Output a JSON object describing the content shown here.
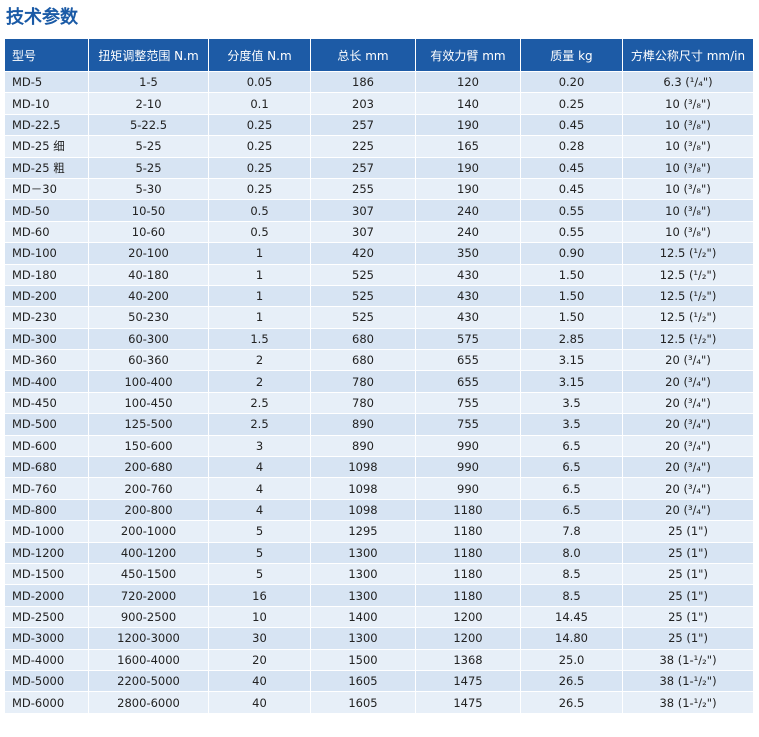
{
  "title": "技术参数",
  "table": {
    "header": [
      "型号",
      "扭矩调整范围 N.m",
      "分度值 N.m",
      "总长 mm",
      "有效力臂 mm",
      "质量 kg",
      "方榫公称尺寸 mm/in"
    ],
    "rows": [
      [
        "MD-5",
        "1-5",
        "0.05",
        "186",
        "120",
        "0.20",
        "6.3 (¹/₄\")"
      ],
      [
        "MD-10",
        "2-10",
        "0.1",
        "203",
        "140",
        "0.25",
        "10 (³/₈\")"
      ],
      [
        "MD-22.5",
        "5-22.5",
        "0.25",
        "257",
        "190",
        "0.45",
        "10 (³/₈\")"
      ],
      [
        "MD-25 细",
        "5-25",
        "0.25",
        "225",
        "165",
        "0.28",
        "10 (³/₈\")"
      ],
      [
        "MD-25 粗",
        "5-25",
        "0.25",
        "257",
        "190",
        "0.45",
        "10 (³/₈\")"
      ],
      [
        "MD－30",
        "5-30",
        "0.25",
        "255",
        "190",
        "0.45",
        "10 (³/₈\")"
      ],
      [
        "MD-50",
        "10-50",
        "0.5",
        "307",
        "240",
        "0.55",
        "10 (³/₈\")"
      ],
      [
        "MD-60",
        "10-60",
        "0.5",
        "307",
        "240",
        "0.55",
        "10 (³/₈\")"
      ],
      [
        "MD-100",
        "20-100",
        "1",
        "420",
        "350",
        "0.90",
        "12.5 (¹/₂\")"
      ],
      [
        "MD-180",
        "40-180",
        "1",
        "525",
        "430",
        "1.50",
        "12.5 (¹/₂\")"
      ],
      [
        "MD-200",
        "40-200",
        "1",
        "525",
        "430",
        "1.50",
        "12.5 (¹/₂\")"
      ],
      [
        "MD-230",
        "50-230",
        "1",
        "525",
        "430",
        "1.50",
        "12.5 (¹/₂\")"
      ],
      [
        "MD-300",
        "60-300",
        "1.5",
        "680",
        "575",
        "2.85",
        "12.5 (¹/₂\")"
      ],
      [
        "MD-360",
        "60-360",
        "2",
        "680",
        "655",
        "3.15",
        "20 (³/₄\")"
      ],
      [
        "MD-400",
        "100-400",
        "2",
        "780",
        "655",
        "3.15",
        "20 (³/₄\")"
      ],
      [
        "MD-450",
        "100-450",
        "2.5",
        "780",
        "755",
        "3.5",
        "20 (³/₄\")"
      ],
      [
        "MD-500",
        "125-500",
        "2.5",
        "890",
        "755",
        "3.5",
        "20 (³/₄\")"
      ],
      [
        "MD-600",
        "150-600",
        "3",
        "890",
        "990",
        "6.5",
        "20 (³/₄\")"
      ],
      [
        "MD-680",
        "200-680",
        "4",
        "1098",
        "990",
        "6.5",
        "20 (³/₄\")"
      ],
      [
        "MD-760",
        "200-760",
        "4",
        "1098",
        "990",
        "6.5",
        "20 (³/₄\")"
      ],
      [
        "MD-800",
        "200-800",
        "4",
        "1098",
        "1180",
        "6.5",
        "20 (³/₄\")"
      ],
      [
        "MD-1000",
        "200-1000",
        "5",
        "1295",
        "1180",
        "7.8",
        "25 (1\")"
      ],
      [
        "MD-1200",
        "400-1200",
        "5",
        "1300",
        "1180",
        "8.0",
        "25 (1\")"
      ],
      [
        "MD-1500",
        "450-1500",
        "5",
        "1300",
        "1180",
        "8.5",
        "25 (1\")"
      ],
      [
        "MD-2000",
        "720-2000",
        "16",
        "1300",
        "1180",
        "8.5",
        "25 (1\")"
      ],
      [
        "MD-2500",
        "900-2500",
        "10",
        "1400",
        "1200",
        "14.45",
        "25 (1\")"
      ],
      [
        "MD-3000",
        "1200-3000",
        "30",
        "1300",
        "1200",
        "14.80",
        "25 (1\")"
      ],
      [
        "MD-4000",
        "1600-4000",
        "20",
        "1500",
        "1368",
        "25.0",
        "38 (1-¹/₂\")"
      ],
      [
        "MD-5000",
        "2200-5000",
        "40",
        "1605",
        "1475",
        "26.5",
        "38 (1-¹/₂\")"
      ],
      [
        "MD-6000",
        "2800-6000",
        "40",
        "1605",
        "1475",
        "26.5",
        "38 (1-¹/₂\")"
      ]
    ]
  }
}
